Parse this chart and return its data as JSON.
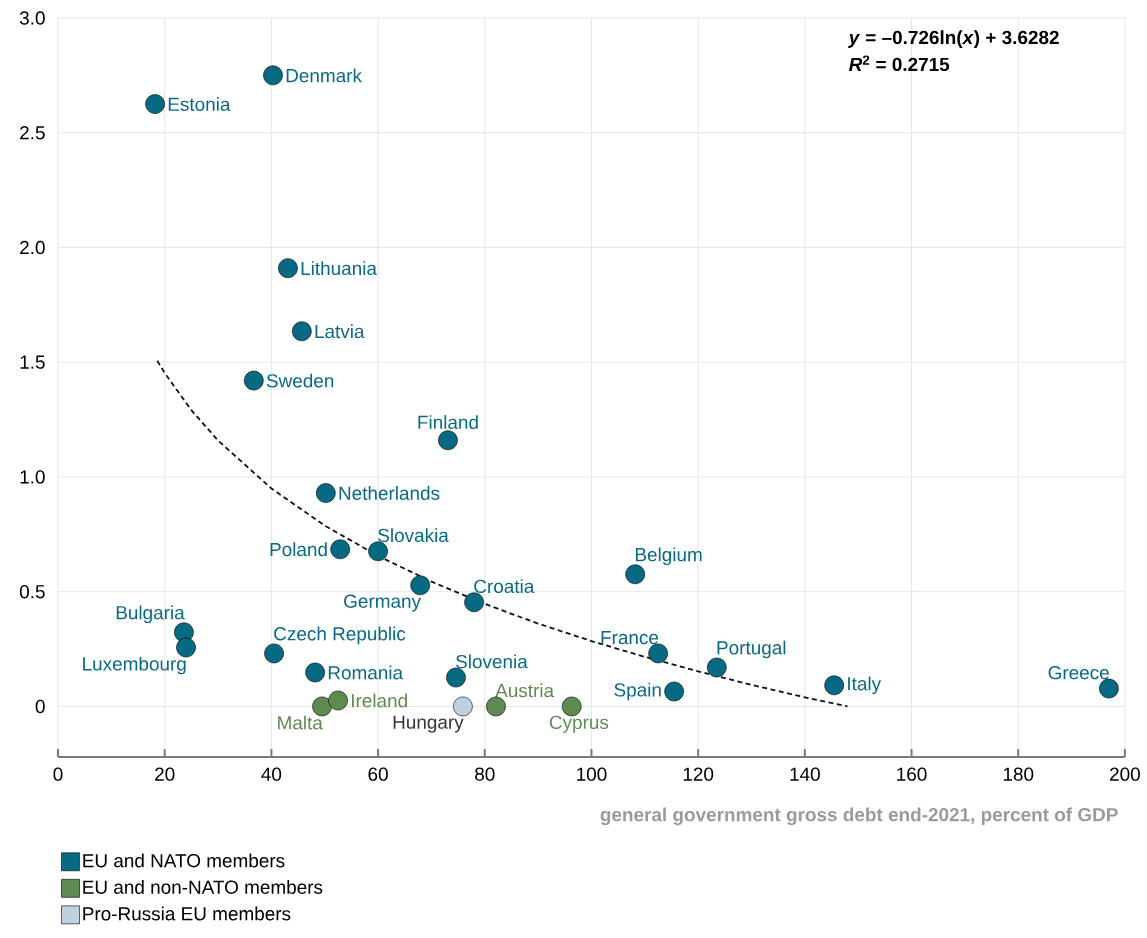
{
  "chart_data": {
    "type": "scatter",
    "xlabel": "general government gross debt end-2021, percent of GDP",
    "xlim": [
      0,
      200
    ],
    "ylim": [
      -0.22,
      3.0
    ],
    "xticks": [
      0,
      20,
      40,
      60,
      80,
      100,
      120,
      140,
      160,
      180,
      200
    ],
    "yticks": [
      0,
      {
        "value": 0.5,
        "label": "0.5"
      },
      {
        "value": 1,
        "label": "1.0"
      },
      {
        "value": 1.5,
        "label": "1.5"
      },
      {
        "value": 2,
        "label": "2.0"
      },
      {
        "value": 2.5,
        "label": "2.5"
      },
      {
        "value": 3,
        "label": "3.0"
      }
    ],
    "grid": true,
    "legend": "bottom left",
    "series": [
      {
        "name": "EU and NATO members",
        "color": "#086a82",
        "marker": "circle",
        "x": [
          18.2,
          40.3,
          43.1,
          45.7,
          36.7,
          73.1,
          50.2,
          52.9,
          60.0,
          67.9,
          78.0,
          108.2,
          23.6,
          24.0,
          40.5,
          48.2,
          74.6,
          112.5,
          123.5,
          115.5,
          145.5,
          197.0
        ],
        "values": [
          2.625,
          2.75,
          1.91,
          1.635,
          1.42,
          1.16,
          0.93,
          0.685,
          0.676,
          0.528,
          0.454,
          0.576,
          0.323,
          0.257,
          0.231,
          0.148,
          0.126,
          0.231,
          0.17,
          0.065,
          0.092,
          0.078
        ]
      },
      {
        "name": "EU and non-NATO members",
        "color": "#5e8a50",
        "marker": "circle",
        "x": [
          49.5,
          52.5,
          82.1,
          96.3
        ],
        "values": [
          0,
          0.026,
          0,
          0
        ]
      },
      {
        "name": "Pro-Russia EU members",
        "color": "#c0d0de",
        "marker": "circle",
        "x": [
          75.9
        ],
        "values": [
          0
        ]
      },
      {
        "type": "line",
        "color": "#111111",
        "line_style": "dashed",
        "marker": "none",
        "x": [
          18.6,
          20,
          25,
          30,
          40,
          50,
          60,
          70,
          80,
          90,
          100,
          110,
          120,
          130,
          140,
          148
        ],
        "values": [
          1.506,
          1.453,
          1.291,
          1.159,
          0.95,
          0.788,
          0.656,
          0.544,
          0.447,
          0.361,
          0.285,
          0.216,
          0.153,
          0.094,
          0.04,
          0.0
        ]
      }
    ],
    "annotations": [
      "*y* = –0.726ln(*x*) + 3.6282",
      "*R*$^{2}$ = 0.2715",
      {
        "text": "Estonia",
        "x": 18.2,
        "y": 2.625
      },
      {
        "text": "Denmark",
        "x": 40.3,
        "y": 2.75
      },
      {
        "text": "Lithuania",
        "x": 43.1,
        "y": 1.91
      },
      {
        "text": "Latvia",
        "x": 45.7,
        "y": 1.635
      },
      {
        "text": "Sweden",
        "x": 36.7,
        "y": 1.42
      },
      {
        "text": "Finland",
        "x": 73.1,
        "y": 1.16
      },
      {
        "text": "Netherlands",
        "x": 50.2,
        "y": 0.93
      },
      {
        "text": "Poland",
        "x": 52.9,
        "y": 0.685
      },
      {
        "text": "Slovakia",
        "x": 60.0,
        "y": 0.676
      },
      {
        "text": "Germany",
        "x": 67.9,
        "y": 0.528
      },
      {
        "text": "Croatia",
        "x": 78.0,
        "y": 0.454
      },
      {
        "text": "Belgium",
        "x": 108.2,
        "y": 0.576
      },
      {
        "text": "Bulgaria",
        "x": 23.6,
        "y": 0.323
      },
      {
        "text": "Luxembourg",
        "x": 24.0,
        "y": 0.257
      },
      {
        "text": "Czech Republic",
        "x": 40.5,
        "y": 0.231
      },
      {
        "text": "Romania",
        "x": 48.2,
        "y": 0.148
      },
      {
        "text": "Slovenia",
        "x": 74.6,
        "y": 0.126
      },
      {
        "text": "France",
        "x": 112.5,
        "y": 0.231
      },
      {
        "text": "Portugal",
        "x": 123.5,
        "y": 0.17
      },
      {
        "text": "Spain",
        "x": 115.5,
        "y": 0.065
      },
      {
        "text": "Italy",
        "x": 145.5,
        "y": 0.092
      },
      {
        "text": "Greece",
        "x": 197.0,
        "y": 0.078
      },
      {
        "text": "Malta",
        "x": 49.5,
        "y": 0
      },
      {
        "text": "Ireland",
        "x": 52.5,
        "y": 0.026
      },
      {
        "text": "Hungary",
        "x": 75.9,
        "y": 0
      },
      {
        "text": "Austria",
        "x": 82.1,
        "y": 0
      },
      {
        "text": "Cyprus",
        "x": 96.3,
        "y": 0
      }
    ]
  }
}
